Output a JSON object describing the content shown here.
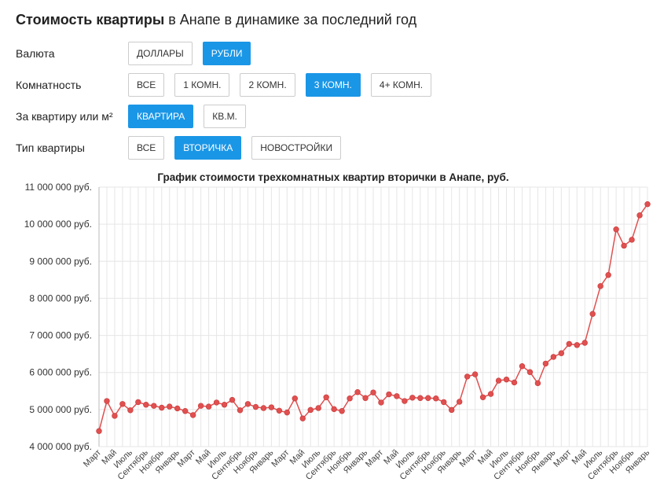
{
  "header": {
    "title_bold": "Стоимость квартиры",
    "title_rest": " в Анапе в динамике за последний год"
  },
  "filters": [
    {
      "label": "Валюта",
      "options": [
        "ДОЛЛАРЫ",
        "РУБЛИ"
      ],
      "active": 1
    },
    {
      "label": "Комнатность",
      "options": [
        "ВСЕ",
        "1 КОМН.",
        "2 КОМН.",
        "3 КОМН.",
        "4+ КОМН."
      ],
      "active": 3
    },
    {
      "label": "За квартиру или м²",
      "options": [
        "КВАРТИРА",
        "КВ.М."
      ],
      "active": 0
    },
    {
      "label": "Тип квартиры",
      "options": [
        "ВСЕ",
        "ВТОРИЧКА",
        "НОВОСТРОЙКИ"
      ],
      "active": 1
    }
  ],
  "colors": {
    "accent": "#1a96e6",
    "series": "#e05050",
    "grid": "#e6e6e6"
  },
  "chart_data": {
    "type": "line",
    "title": "График стоимости трехкомнатных квартир вторички в Анапе, руб.",
    "xlabel": "",
    "ylabel": "",
    "ylim": [
      4000000,
      11000000
    ],
    "yticks": [
      "4 000 000 руб.",
      "5 000 000 руб.",
      "6 000 000 руб.",
      "7 000 000 руб.",
      "8 000 000 руб.",
      "9 000 000 руб.",
      "10 000 000 руб.",
      "11 000 000 руб."
    ],
    "xticks": [
      "Март",
      "Май",
      "Июль",
      "Сентябрь",
      "Ноябрь",
      "Январь",
      "Март",
      "Май",
      "Июль",
      "Сентябрь",
      "Ноябрь",
      "Январь",
      "Март",
      "Май",
      "Июль",
      "Сентябрь",
      "Ноябрь",
      "Январь",
      "Март",
      "Май",
      "Июль",
      "Сентябрь",
      "Ноябрь",
      "Январь",
      "Март",
      "Май",
      "Июль",
      "Сентябрь",
      "Ноябрь",
      "Январь",
      "Март",
      "Май",
      "Июль",
      "Сентябрь",
      "Ноябрь",
      "Январь"
    ],
    "grid": true,
    "series": [
      {
        "values": [
          4420000,
          5230000,
          4830000,
          5150000,
          4980000,
          5200000,
          5130000,
          5100000,
          5050000,
          5080000,
          5030000,
          4960000,
          4850000,
          5100000,
          5080000,
          5190000,
          5130000,
          5260000,
          4980000,
          5150000,
          5070000,
          5040000,
          5060000,
          4970000,
          4920000,
          5300000,
          4760000,
          4990000,
          5040000,
          5330000,
          5010000,
          4960000,
          5300000,
          5470000,
          5310000,
          5460000,
          5190000,
          5410000,
          5360000,
          5230000,
          5320000,
          5310000,
          5310000,
          5300000,
          5200000,
          4990000,
          5210000,
          5890000,
          5950000,
          5330000,
          5420000,
          5780000,
          5810000,
          5730000,
          6170000,
          6010000,
          5710000,
          6240000,
          6420000,
          6520000,
          6770000,
          6740000,
          6800000,
          7580000,
          8330000,
          8630000,
          9860000,
          9420000,
          9580000,
          10240000,
          10540000
        ]
      }
    ]
  }
}
